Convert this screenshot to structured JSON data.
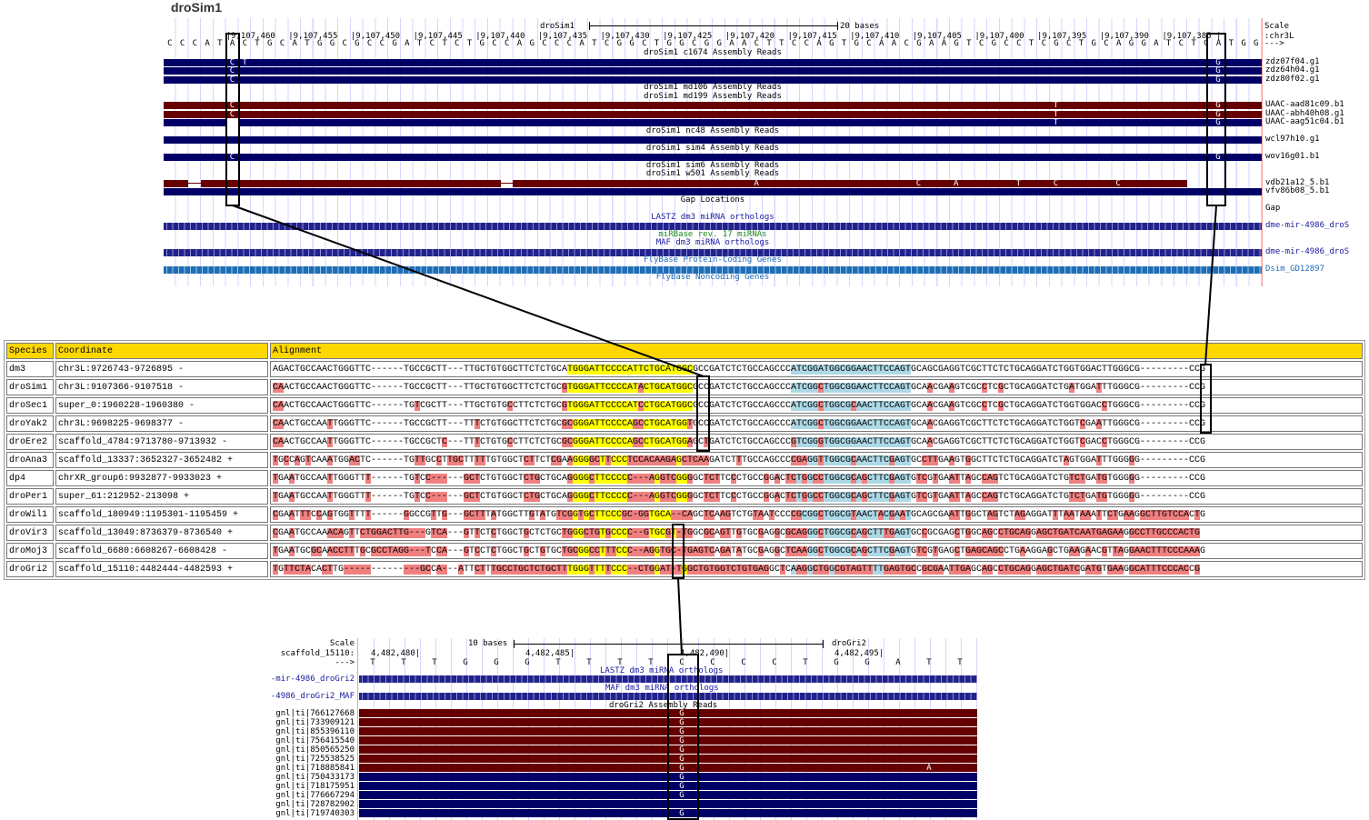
{
  "top": {
    "title": "droSim1",
    "scale_label": "Scale",
    "scale_bar": "20 bases",
    "assembly": "droSim1",
    "chrom_label": ":chr3L",
    "strand_label": "--->",
    "positions": [
      "|9,107,460",
      "|9,107,455",
      "|9,107,450",
      "|9,107,445",
      "|9,107,440",
      "|9,107,435",
      "|9,107,430",
      "|9,107,425",
      "|9,107,420",
      "|9,107,415",
      "|9,107,410",
      "|9,107,405",
      "|9,107,400",
      "|9,107,395",
      "|9,107,390",
      "|9,107,385 |"
    ],
    "bases": "CCCATACTGCATGGCGCCGATCTCTGCCAGCCCATCGGCTGGCGGAACTTCCAGTGCAACGAAGTCGCCTCGCTGCAGGATCTCATGG",
    "rows": [
      {
        "type": "label",
        "text": "droSim1 c1674 Assembly Reads",
        "color": "#000000"
      },
      {
        "type": "bar",
        "style": "blue",
        "name": "zdz07f04.g1",
        "mismatches": [
          {
            "col": 5,
            "base": "C"
          },
          {
            "col": 6,
            "base": "T"
          },
          {
            "col": 84,
            "base": "G"
          }
        ]
      },
      {
        "type": "bar",
        "style": "blue",
        "name": "zdz64h04.g1",
        "mismatches": [
          {
            "col": 5,
            "base": "C"
          },
          {
            "col": 84,
            "base": "G"
          }
        ]
      },
      {
        "type": "bar",
        "style": "blue",
        "name": "zdz80f02.g1",
        "mismatches": [
          {
            "col": 5,
            "base": "C"
          },
          {
            "col": 84,
            "base": "G"
          }
        ]
      },
      {
        "type": "label",
        "text": "droSim1 md106 Assembly Reads",
        "color": "#000000"
      },
      {
        "type": "label",
        "text": "droSim1 md199 Assembly Reads",
        "color": "#000000"
      },
      {
        "type": "bar",
        "style": "red",
        "name": "UAAC-aad81c09.b1",
        "mismatches": [
          {
            "col": 5,
            "base": "C"
          },
          {
            "col": 71,
            "base": "T"
          },
          {
            "col": 84,
            "base": "G"
          }
        ]
      },
      {
        "type": "bar",
        "style": "red",
        "name": "UAAC-abh40h08.g1",
        "mismatches": [
          {
            "col": 5,
            "base": "C"
          },
          {
            "col": 71,
            "base": "T"
          },
          {
            "col": 84,
            "base": "G"
          }
        ]
      },
      {
        "type": "bar",
        "style": "blue",
        "name": "UAAC-aag51c04.b1",
        "segments": [
          [
            0,
            4
          ],
          [
            6,
            87
          ]
        ],
        "mismatches": [
          {
            "col": 71,
            "base": "T"
          },
          {
            "col": 84,
            "base": "G"
          }
        ]
      },
      {
        "type": "label",
        "text": "droSim1 nc48 Assembly Reads",
        "color": "#000000"
      },
      {
        "type": "bar",
        "style": "blue",
        "name": "wcl97h10.g1",
        "mismatches": []
      },
      {
        "type": "label",
        "text": "droSim1 sim4 Assembly Reads",
        "color": "#000000"
      },
      {
        "type": "bar",
        "style": "blue",
        "name": "wov16g01.b1",
        "mismatches": [
          {
            "col": 5,
            "base": "C"
          },
          {
            "col": 84,
            "base": "G"
          }
        ]
      },
      {
        "type": "label",
        "text": "droSim1 sim6 Assembly Reads",
        "color": "#000000"
      },
      {
        "type": "label",
        "text": "droSim1 w501 Assembly Reads",
        "color": "#000000"
      },
      {
        "type": "bar",
        "style": "red",
        "name": "vdb21a12_5.b1",
        "segments": [
          [
            0,
            1
          ],
          [
            3,
            26
          ],
          [
            28,
            81
          ]
        ],
        "mismatches": [
          {
            "col": 47,
            "base": "A"
          },
          {
            "col": 60,
            "base": "C"
          },
          {
            "col": 63,
            "base": "A"
          },
          {
            "col": 68,
            "base": "T"
          },
          {
            "col": 71,
            "base": "C"
          },
          {
            "col": 76,
            "base": "C"
          }
        ]
      },
      {
        "type": "bar",
        "style": "blue",
        "name": "vfv86b08_5.b1",
        "mismatches": []
      },
      {
        "type": "label",
        "text": "Gap Locations",
        "color": "#000000"
      },
      {
        "type": "empty",
        "name": "Gap"
      },
      {
        "type": "label",
        "text": "LASTZ dm3 miRNA orthologs",
        "color": "#1a1aa0"
      },
      {
        "type": "bar",
        "style": "chev",
        "name": "dme-mir-4986_droS",
        "name_color": "#1a1aa0",
        "mismatches": []
      },
      {
        "type": "label",
        "text": "miRBase rev. 17 miRNAs",
        "color": "#1a8a1a"
      },
      {
        "type": "label",
        "text": "MAF dm3 miRNA orthologs",
        "color": "#1a1aa0"
      },
      {
        "type": "bar",
        "style": "chev",
        "name": "dme-mir-4986_droS",
        "name_color": "#1a1aa0",
        "mismatches": []
      },
      {
        "type": "label",
        "text": "FlyBase Protein-Coding Genes",
        "color": "#1e6db5"
      },
      {
        "type": "bar",
        "style": "chev2",
        "name": "Dsim_GD12897",
        "name_color": "#1e6db5",
        "mismatches": []
      },
      {
        "type": "label",
        "text": "FlyBase Noncoding Genes",
        "color": "#1e6db5"
      }
    ]
  },
  "table": {
    "headers": [
      "Species",
      "Coordinate",
      "Alignment"
    ],
    "rows": [
      {
        "species": "dm3",
        "coord": "chr3L:9726743-9726895 -",
        "seq": "AGACTGCCAACTGGGTTC------TGCCGCTT---TTGCTGTGGCTTCTCTGCATGGGATTCCCCATTCTGCATGGCGCCGATCTCTGCCAGCCCATCGGATGGCGGAACTTCCAGTGCAGCGAGGTCGCTTCTCTGCAGGATCTGGTGGACTTGGGCG---------CCG"
      },
      {
        "species": "droSim1",
        "coord": "chr3L:9107366-9107518 -",
        "seq": "CAACTGCCAACTGGGTTC------TGCCGCTT---TTGCTGTGGCTTCTCTGCGTGGGATTCCCCATACTGCATGGCGCCGATCTCTGCCAGCCCATCGGCTGGCGGAACTTCCAGTGCAACGAAGTCGCCTCGCTGCAGGATCTGATGGATTTGGGCG---------CCG"
      },
      {
        "species": "droSec1",
        "coord": "super_0:1960228-1960380 -",
        "seq": "CAACTGCCAACTGGGTTC------TGTCGCTT---TTGCTGTGCCTTCTCTGCGTGGGATTCCCCATCCTGCATGGCGCCGATCTCTGCCAGCCCATCGGCTGGCGCAACTTCCAGTGCAACGAAGTCGCCTCGCTGCAGGATCTGGTGGACCTGGGCG---------CCG"
      },
      {
        "species": "droYak2",
        "coord": "chr3L:9698225-9698377 -",
        "seq": "CAACTGCCAATTGGGTTC------TGCCGCTT---TTTCTGTGGCTTCTCTGCGCGGGATTCCCCAGCCTGCATGGTGCCGATCTCTGCCAGCCCATCGGCTGGCGGAACTTCCAGTGCAACGAGGTCGCTTCTCTGCAGGATCTGGTCGAATTGGGCG---------CCG"
      },
      {
        "species": "droEre2",
        "coord": "scaffold_4784:9713780-9713932 -",
        "seq": "CAACTGCCAATTGGGTTC------TGCCGCTC---TTTCTGTGCCTTCTCTGCGCGGGATTCCCCAGCCTGCATGGAGCTGATCTCTGCCAGCCCGTCGGGTGGCGGAACTTCCAGTGCAACGAGGTCGCTTCTCTGCAGGATCTGGTCGACCTGGGCG---------CCG"
      },
      {
        "species": "droAna3",
        "coord": "scaffold_13337:3652327-3652482 +",
        "seq": "TGCCAGTCAAATGGACTC------TGTTGCCTTGCTTTTTGTGGCTCTTCTCGAAGGGGCTTCCCTCCACAAGAGCTCAAGATCTTTGCCAGCCCCGAGGTTGGCGCAACTTCGAGTGCCTTGAAGTGGCTTCTCTGCAGGATCTAGTGGATTTGGGGG---------CCG"
      },
      {
        "species": "dp4",
        "coord": "chrXR_group6:9932877-9933023 +",
        "seq": "TGAATGCCAATTGGGTTT------TGTCC------GCTCTGTGGCTCTGCTGCAGGGGCTTCCCCC---AGGTCGGGGCTCTTCCCTGCCGGACTCTGGCCTGGCGCAGCTTCGAGTGTCGTGAATTAGCCAGTCTGCAGGATCTGTCTGATGTGGGGG---------CCG"
      },
      {
        "species": "droPer1",
        "coord": "super_61:212952-213098 +",
        "seq": "TGAATGCCAATTGGGTTT------TGTCC------GCTCTGTGGCTCTGCTGCAGGGGCTTCCCCC---AGGTCGGGGCTCTTCCCTGCCGGACTCTGGCCTGGCGCAGCTTCGAGTGTCGTGAATTAGCCAGTCTGCAGGATCTGTCTGATGTGGGGG---------CCG"
      },
      {
        "species": "droWil1",
        "coord": "scaffold_180949:1195301-1195459 +",
        "seq": "CGAATTTCCAGTGGTTTT------GGCCGTTG---GCTTTATGGCTTGTATGTCGGTGCTTCCCGC-GGTGCA--CAGCTCAAGTCTGTAATCCCCGCGGCTGGCGTAACTACGAATGCAGCGAATTGGCTAGTCTAGAGGATTTAATAAATTCTGAAGGCTTGTCCACTG"
      },
      {
        "species": "droVir3",
        "coord": "scaffold_13049:8736379-8736540 +",
        "seq": "CGAATGCCAAACAGTTCTGGACTTG---GTCA---GTTCTCTGGCTGCTCTGCTGGGCTGTGCCCC--GTGCGT-TGGCGCAGTTGTGCGAGGCGCAGGGCTGGCGCAGCTTTGAGTGCCGCGAGCTGGCAGCCTGCAGGAGCTGATCAATGAGAAGGCCTTGCCCACTG"
      },
      {
        "species": "droMoj3",
        "coord": "scaffold_6680:6608267-6608428 -",
        "seq": "TGAATGCGCAACCTTTGCGCCTAGG---TCCA---GTCCTCTGGCTGCTGTGCTGCGGCCTTTCCC--AGGTGC-TGAGTCAGATATGCGAGGCTCAAGGCTGGCGCAGCTTCGAGTGTCGTGAGCTGAGCAGCCTGAAGGAGCTGAAGAACGTTAGGAACTTTCCCAAAG"
      },
      {
        "species": "droGri2",
        "coord": "scaffold_15110:4482444-4482593 +",
        "seq": "TGTTCTACACTTG--------------GCCA---ATTCTTTGCCTGCTCTGCTTTGGGTTTTCCC--CTGGAT-TGGCTGTGGTCTGTGAGGCTCAAGGCTGGCGTAGTTTTGAGTGCCGCGAATTGAGCAGCCTGCAGGAGCTGATCGATGTGAAGGCATTTCCCACCG"
      }
    ]
  },
  "bottom": {
    "scale_label": "Scale",
    "scale_bar": "10 bases",
    "assembly": "droGri2",
    "chrom_label": "scaffold_15110:",
    "strand_label": "--->",
    "positions": [
      "4,482,480|",
      "4,482,485|",
      "4,482,490|",
      "4,482,495|"
    ],
    "bases": "TTTGGGTTTTCCCCTGGATT",
    "lastz_label": "LASTZ dm3 miRNA orthologs",
    "lastz_item": "-mir-4986_droGri2",
    "maf_label": "MAF dm3 miRNA orthologs",
    "maf_item": "-4986_droGri2_MAF",
    "reads_label": "droGri2 Assembly Reads",
    "reads": [
      {
        "name": "gnl|ti|766127668",
        "style": "red",
        "mismatches": [
          {
            "col": 10,
            "base": "G"
          }
        ]
      },
      {
        "name": "gnl|ti|733909121",
        "style": "red",
        "mismatches": [
          {
            "col": 10,
            "base": "G"
          }
        ]
      },
      {
        "name": "gnl|ti|855396110",
        "style": "red",
        "mismatches": [
          {
            "col": 10,
            "base": "G"
          }
        ]
      },
      {
        "name": "gnl|ti|756415540",
        "style": "red",
        "mismatches": [
          {
            "col": 10,
            "base": "G"
          }
        ]
      },
      {
        "name": "gnl|ti|850565250",
        "style": "red",
        "mismatches": [
          {
            "col": 10,
            "base": "G"
          }
        ]
      },
      {
        "name": "gnl|ti|725538525",
        "style": "red",
        "mismatches": [
          {
            "col": 10,
            "base": "G"
          }
        ]
      },
      {
        "name": "gnl|ti|718885841",
        "style": "red",
        "mismatches": [
          {
            "col": 10,
            "base": "G"
          },
          {
            "col": 18,
            "base": "A"
          }
        ]
      },
      {
        "name": "gnl|ti|750433173",
        "style": "blue",
        "mismatches": [
          {
            "col": 10,
            "base": "G"
          }
        ]
      },
      {
        "name": "gnl|ti|718175951",
        "style": "blue",
        "mismatches": [
          {
            "col": 10,
            "base": "G"
          }
        ]
      },
      {
        "name": "gnl|ti|776667294",
        "style": "blue",
        "mismatches": [
          {
            "col": 10,
            "base": "G"
          }
        ]
      },
      {
        "name": "gnl|ti|728782902",
        "style": "blue",
        "mismatches": []
      },
      {
        "name": "gnl|ti|719740303",
        "style": "blue",
        "mismatches": [
          {
            "col": 10,
            "base": "G"
          }
        ]
      }
    ]
  }
}
